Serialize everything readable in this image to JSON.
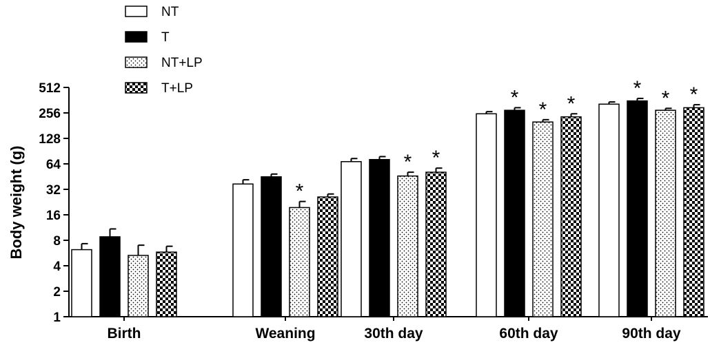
{
  "chart_data": {
    "type": "bar",
    "title": "",
    "xlabel": "",
    "ylabel": "Body weight (g)",
    "y_scale": "log2",
    "ylim": [
      1,
      512
    ],
    "yticks": [
      "1",
      "2",
      "4",
      "8",
      "16",
      "32",
      "64",
      "128",
      "256",
      "512"
    ],
    "ytick_values": [
      1,
      2,
      4,
      8,
      16,
      32,
      64,
      128,
      256,
      512
    ],
    "grid": false,
    "legend_position": "top-left",
    "categories": [
      "Birth",
      "Weaning",
      "30th day",
      "60th day",
      "90th day"
    ],
    "significance_marker": "*",
    "series": [
      {
        "name": "NT",
        "fill": "white",
        "values": [
          6.2,
          37,
          68,
          250,
          325
        ],
        "errors": [
          1.1,
          4.5,
          6,
          15,
          20
        ],
        "significant": [
          false,
          false,
          false,
          false,
          false
        ]
      },
      {
        "name": "T",
        "fill": "black",
        "values": [
          8.8,
          45,
          72,
          275,
          355
        ],
        "errors": [
          2.1,
          3.5,
          6,
          20,
          25
        ],
        "significant": [
          false,
          false,
          false,
          true,
          true
        ]
      },
      {
        "name": "NT+LP",
        "fill": "dots",
        "values": [
          5.3,
          19.5,
          46,
          200,
          275
        ],
        "errors": [
          1.7,
          3.5,
          5,
          13,
          15
        ],
        "significant": [
          false,
          true,
          true,
          true,
          true
        ]
      },
      {
        "name": "T+LP",
        "fill": "checker",
        "values": [
          5.8,
          26,
          51,
          230,
          295
        ],
        "errors": [
          1.0,
          2.2,
          6,
          20,
          25
        ],
        "significant": [
          false,
          false,
          true,
          true,
          true
        ]
      }
    ],
    "colors": {
      "stroke": "#000000",
      "background": "#ffffff"
    }
  }
}
